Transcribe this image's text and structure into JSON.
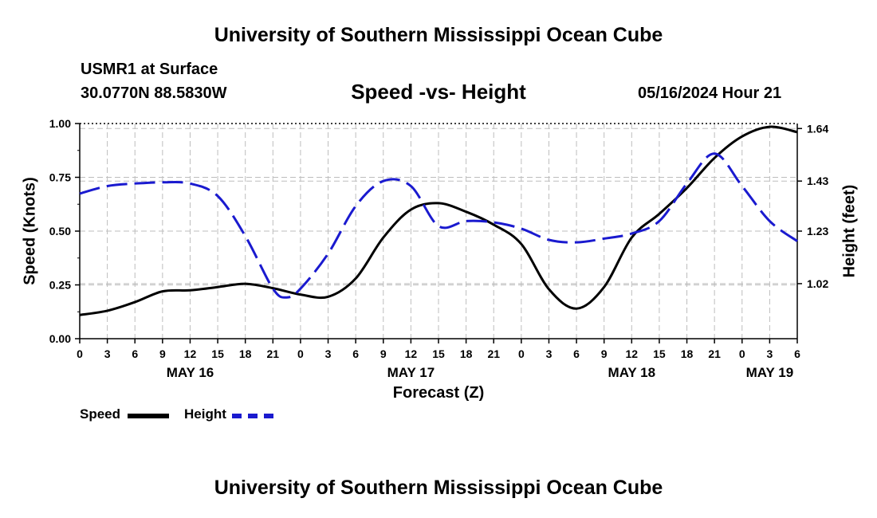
{
  "header": {
    "title": "University of Southern Mississippi Ocean Cube",
    "station": "USMR1 at Surface",
    "coords": "30.0770N  88.5830W",
    "subtitle": "Speed -vs- Height",
    "datetime": "05/16/2024 Hour 21",
    "bottom_title": "University of Southern Mississippi Ocean Cube"
  },
  "legend": {
    "speed_label": "Speed",
    "height_label": "Height"
  },
  "chart_data": {
    "type": "line",
    "title": "Speed -vs- Height",
    "xlabel": "Forecast (Z)",
    "ylabel": "Speed (Knots)",
    "ylabel_right": "Height (feet)",
    "grid": true,
    "legend_position": "bottom-left",
    "x_range_hours": [
      0,
      78
    ],
    "x_ticks": [
      "0",
      "3",
      "6",
      "9",
      "12",
      "15",
      "18",
      "21",
      "0",
      "3",
      "6",
      "9",
      "12",
      "15",
      "18",
      "21",
      "0",
      "3",
      "6",
      "9",
      "12",
      "15",
      "18",
      "21",
      "0",
      "3",
      "6"
    ],
    "date_labels": [
      {
        "label": "MAY 16",
        "hour": 12
      },
      {
        "label": "MAY 17",
        "hour": 36
      },
      {
        "label": "MAY 18",
        "hour": 60
      },
      {
        "label": "MAY 19",
        "hour": 75
      }
    ],
    "ylim_left": [
      0,
      1
    ],
    "yticks_left": [
      "0.00",
      "0.25",
      "0.50",
      "0.75",
      "1.00"
    ],
    "ylim_right": [
      0.8,
      1.66
    ],
    "yticks_right": [
      {
        "label": "1.02",
        "value": 1.02
      },
      {
        "label": "1.23",
        "value": 1.23
      },
      {
        "label": "1.43",
        "value": 1.43
      },
      {
        "label": "1.64",
        "value": 1.64
      }
    ],
    "colors": {
      "speed": "#000000",
      "height": "#1a1acf"
    },
    "series": [
      {
        "name": "Speed",
        "axis": "left",
        "color": "#000000",
        "style": "solid",
        "hours": [
          0,
          3,
          6,
          9,
          12,
          15,
          18,
          21,
          24,
          27,
          30,
          33,
          36,
          39,
          42,
          45,
          48,
          51,
          54,
          57,
          60,
          63,
          66,
          69,
          72,
          75,
          78
        ],
        "values": [
          0.11,
          0.13,
          0.17,
          0.22,
          0.225,
          0.24,
          0.255,
          0.235,
          0.205,
          0.195,
          0.28,
          0.47,
          0.6,
          0.63,
          0.59,
          0.53,
          0.44,
          0.23,
          0.14,
          0.24,
          0.47,
          0.58,
          0.7,
          0.84,
          0.94,
          0.985,
          0.96
        ]
      },
      {
        "name": "Height",
        "axis": "right",
        "color": "#1a1acf",
        "style": "dashed",
        "hours": [
          0,
          3,
          6,
          9,
          12,
          15,
          18,
          21,
          22.5,
          24,
          27,
          30,
          33,
          36,
          39,
          42,
          45,
          48,
          51,
          54,
          57,
          60,
          63,
          66,
          69,
          72,
          75,
          78
        ],
        "values": [
          1.38,
          1.41,
          1.42,
          1.425,
          1.42,
          1.37,
          1.21,
          1.0,
          0.965,
          1.0,
          1.14,
          1.33,
          1.43,
          1.41,
          1.25,
          1.27,
          1.265,
          1.24,
          1.195,
          1.185,
          1.2,
          1.22,
          1.27,
          1.42,
          1.54,
          1.41,
          1.27,
          1.19
        ]
      }
    ]
  }
}
